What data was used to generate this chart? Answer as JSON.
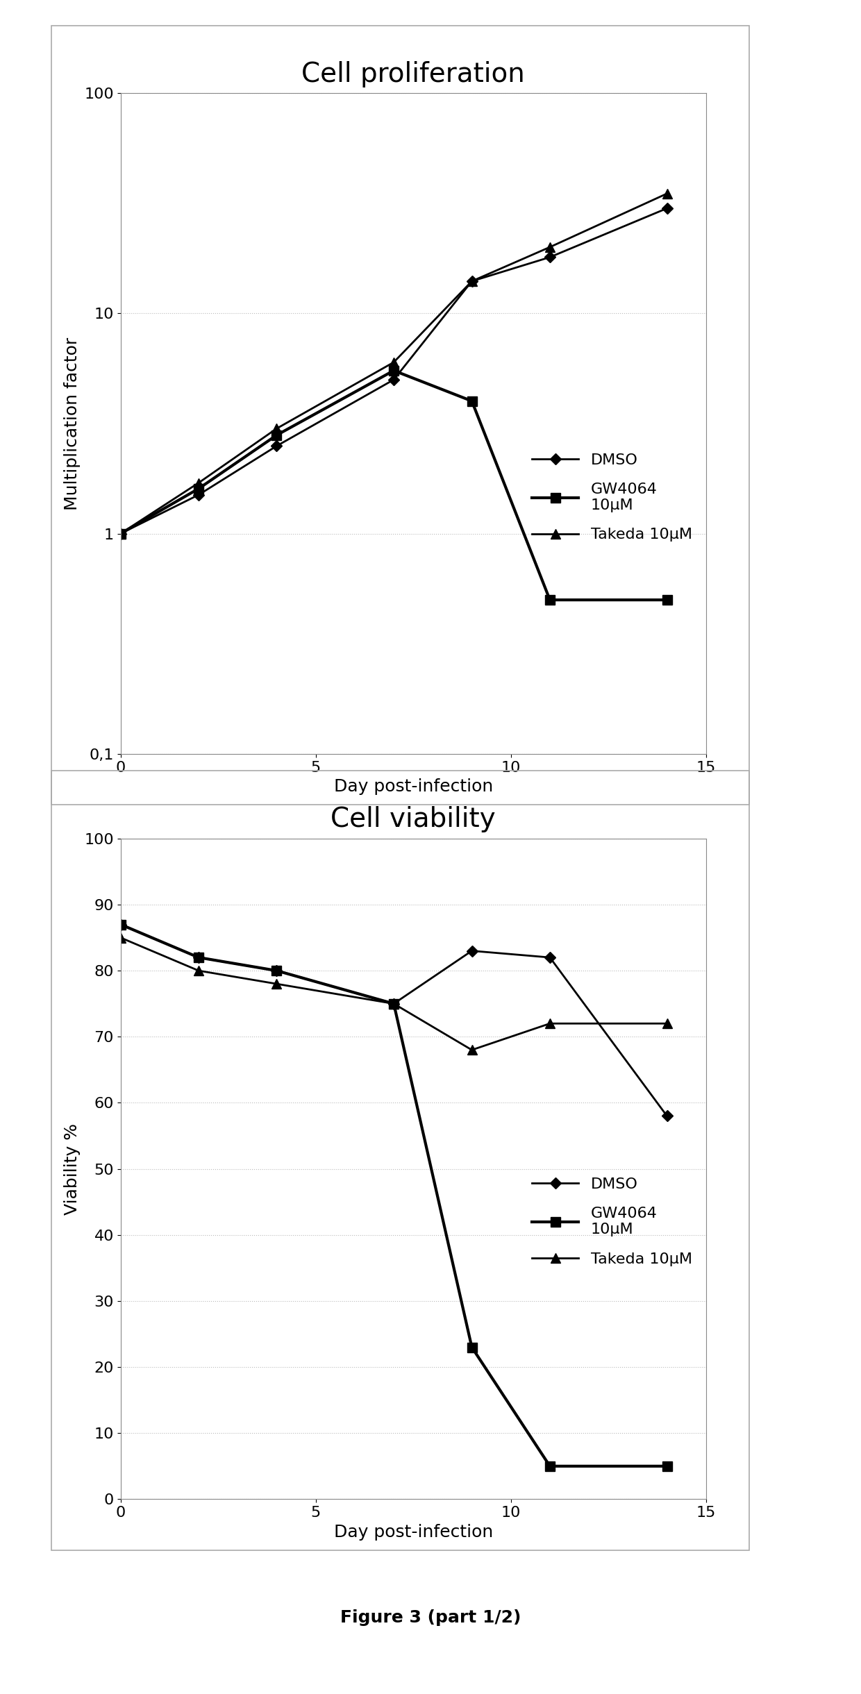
{
  "plot1": {
    "title": "Cell proliferation",
    "ylabel": "Multiplication factor",
    "xlabel": "Day post-infection",
    "ylim": [
      0.1,
      100
    ],
    "xlim": [
      0,
      15
    ],
    "xticks": [
      0,
      5,
      10,
      15
    ],
    "yticks_log": [
      0.1,
      1,
      10,
      100
    ],
    "ytick_labels": [
      "0,1",
      "1",
      "10",
      "100"
    ],
    "series": {
      "DMSO": {
        "x": [
          0,
          2,
          4,
          7,
          9,
          11,
          14
        ],
        "y": [
          1,
          1.5,
          2.5,
          5.0,
          14,
          18,
          30
        ],
        "marker": "D",
        "linewidth": 2,
        "markersize": 8,
        "label": "DMSO"
      },
      "GW4064": {
        "x": [
          0,
          2,
          4,
          7,
          9,
          11,
          14
        ],
        "y": [
          1,
          1.6,
          2.8,
          5.5,
          4.0,
          0.5,
          0.5
        ],
        "marker": "s",
        "linewidth": 3,
        "markersize": 10,
        "label": "GW4064\n10μM"
      },
      "Takeda": {
        "x": [
          0,
          2,
          4,
          7,
          9,
          11,
          14
        ],
        "y": [
          1,
          1.7,
          3.0,
          6.0,
          14,
          20,
          35
        ],
        "marker": "^",
        "linewidth": 2,
        "markersize": 10,
        "label": "Takeda 10μM"
      }
    }
  },
  "plot2": {
    "title": "Cell viability",
    "ylabel": "Viability %",
    "xlabel": "Day post-infection",
    "ylim": [
      0,
      100
    ],
    "xlim": [
      0,
      15
    ],
    "xticks": [
      0,
      5,
      10,
      15
    ],
    "yticks": [
      0,
      10,
      20,
      30,
      40,
      50,
      60,
      70,
      80,
      90,
      100
    ],
    "series": {
      "DMSO": {
        "x": [
          0,
          2,
          4,
          7,
          9,
          11,
          14
        ],
        "y": [
          87,
          82,
          80,
          75,
          83,
          82,
          58
        ],
        "marker": "D",
        "linewidth": 2,
        "markersize": 8,
        "label": "DMSO"
      },
      "GW4064": {
        "x": [
          0,
          2,
          4,
          7,
          9,
          11,
          14
        ],
        "y": [
          87,
          82,
          80,
          75,
          23,
          5,
          5
        ],
        "marker": "s",
        "linewidth": 3,
        "markersize": 10,
        "label": "GW4064\n10μM"
      },
      "Takeda": {
        "x": [
          0,
          2,
          4,
          7,
          9,
          11,
          14
        ],
        "y": [
          85,
          80,
          78,
          75,
          68,
          72,
          72
        ],
        "marker": "^",
        "linewidth": 2,
        "markersize": 10,
        "label": "Takeda 10μM"
      }
    }
  },
  "figure_label": "Figure 3 (part 1/2)",
  "color": "#000000",
  "background": "#ffffff",
  "outer_box_color": "#aaaaaa",
  "grid_color": "#bbbbbb",
  "grid_style": "dotted",
  "title_fontsize": 28,
  "label_fontsize": 18,
  "tick_fontsize": 16
}
